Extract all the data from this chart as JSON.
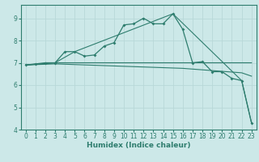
{
  "xlabel": "Humidex (Indice chaleur)",
  "bg_color": "#cce8e8",
  "grid_color": "#b8d8d8",
  "line_color": "#2e7d6e",
  "xlim": [
    -0.5,
    23.5
  ],
  "ylim": [
    4.0,
    9.6
  ],
  "yticks": [
    4,
    5,
    6,
    7,
    8,
    9
  ],
  "xticks": [
    0,
    1,
    2,
    3,
    4,
    5,
    6,
    7,
    8,
    9,
    10,
    11,
    12,
    13,
    14,
    15,
    16,
    17,
    18,
    19,
    20,
    21,
    22,
    23
  ],
  "lines": [
    {
      "x": [
        0,
        1,
        2,
        3,
        4,
        5,
        6,
        7,
        8,
        9,
        10,
        11,
        12,
        13,
        14,
        15,
        16,
        17,
        18,
        19,
        20,
        21,
        22,
        23
      ],
      "y": [
        6.9,
        6.95,
        7.0,
        7.0,
        7.5,
        7.5,
        7.3,
        7.35,
        7.75,
        7.9,
        8.7,
        8.75,
        9.0,
        8.75,
        8.75,
        9.2,
        8.5,
        7.0,
        7.05,
        6.6,
        6.6,
        6.3,
        6.2,
        4.3
      ]
    },
    {
      "x": [
        0,
        3,
        16,
        19,
        21,
        23
      ],
      "y": [
        6.9,
        7.0,
        7.0,
        7.0,
        7.0,
        7.0
      ]
    },
    {
      "x": [
        0,
        3,
        16,
        19,
        22,
        23
      ],
      "y": [
        6.9,
        6.95,
        6.75,
        6.65,
        6.55,
        6.4
      ]
    },
    {
      "x": [
        0,
        3,
        5,
        15,
        22,
        23
      ],
      "y": [
        6.9,
        7.0,
        7.5,
        9.2,
        6.2,
        4.3
      ]
    }
  ]
}
